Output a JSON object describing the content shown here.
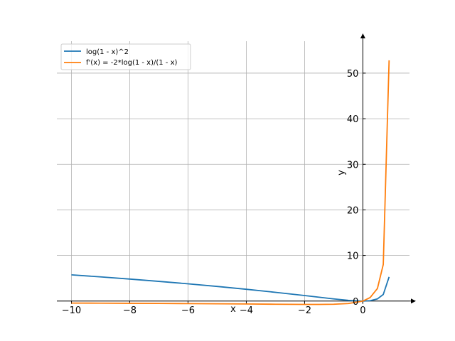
{
  "chart_data": {
    "type": "line",
    "title": "",
    "xlabel": "x",
    "ylabel": "y",
    "xlim": [
      -10.5,
      1.6
    ],
    "ylim": [
      -0.5,
      57
    ],
    "grid": true,
    "legend_position": "top-left",
    "x_ticks": [
      -10,
      -8,
      -6,
      -4,
      -2,
      0
    ],
    "x_tick_labels": [
      "−10",
      "−8",
      "−6",
      "−4",
      "−2",
      "0"
    ],
    "y_ticks": [
      0,
      10,
      20,
      30,
      40,
      50
    ],
    "y_tick_labels": [
      "0",
      "10",
      "20",
      "30",
      "40",
      "50"
    ],
    "series": [
      {
        "name": "log(1 - x)^2",
        "color": "#1f77b4",
        "x": [
          -10,
          -9,
          -8,
          -7,
          -6,
          -5,
          -4,
          -3,
          -2,
          -1.5,
          -1,
          -0.5,
          0,
          0.25,
          0.5,
          0.7,
          0.9
        ],
        "y": [
          5.75,
          5.3,
          4.83,
          4.32,
          3.79,
          3.21,
          2.59,
          1.92,
          1.21,
          0.84,
          0.48,
          0.16,
          0,
          0.08,
          0.48,
          1.45,
          5.3
        ]
      },
      {
        "name": "f'(x) = -2*log(1 - x)/(1 - x)",
        "color": "#ff7f0e",
        "x": [
          -10,
          -9,
          -8,
          -7,
          -6,
          -5,
          -4,
          -3,
          -2,
          -1.5,
          -1,
          -0.5,
          0,
          0.25,
          0.5,
          0.7,
          0.9
        ],
        "y": [
          -0.44,
          -0.46,
          -0.49,
          -0.52,
          -0.56,
          -0.6,
          -0.64,
          -0.69,
          -0.73,
          -0.73,
          -0.69,
          -0.54,
          0,
          0.77,
          2.77,
          8.03,
          52.8
        ]
      }
    ]
  }
}
